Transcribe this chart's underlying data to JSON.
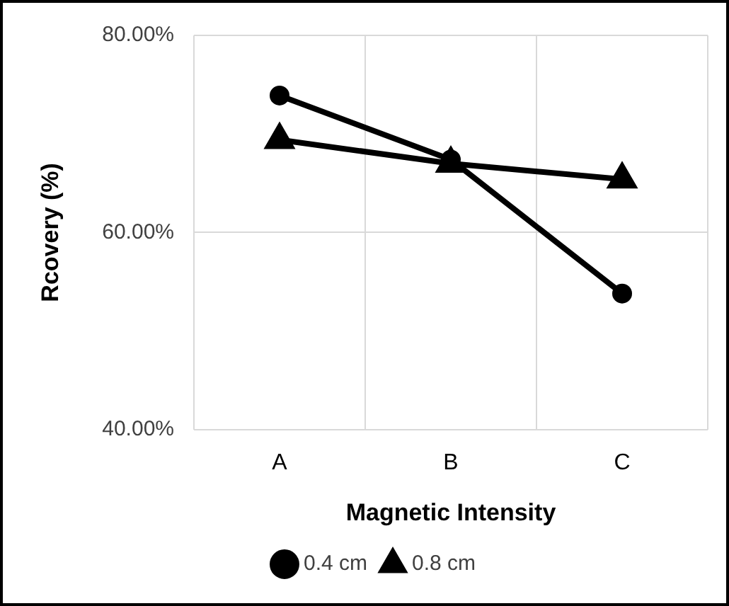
{
  "chart_data": {
    "type": "line",
    "xlabel": "Magnetic Intensity",
    "ylabel": "Rcovery (%)",
    "categories": [
      "A",
      "B",
      "C"
    ],
    "series": [
      {
        "name": "0.4 cm",
        "color": "#000000",
        "marker": "circle",
        "values": [
          73.9,
          67.4,
          53.8
        ]
      },
      {
        "name": "0.8 cm",
        "color": "#000000",
        "marker": "triangle",
        "values": [
          69.4,
          67.0,
          65.4
        ]
      }
    ],
    "ylim": [
      40,
      80
    ],
    "yticks": [
      {
        "value": 40,
        "label": "40.00%"
      },
      {
        "value": 60,
        "label": "60.00%"
      },
      {
        "value": 80,
        "label": "80.00%"
      }
    ],
    "grid": true,
    "legend": "bottom",
    "line_style": "solid"
  }
}
